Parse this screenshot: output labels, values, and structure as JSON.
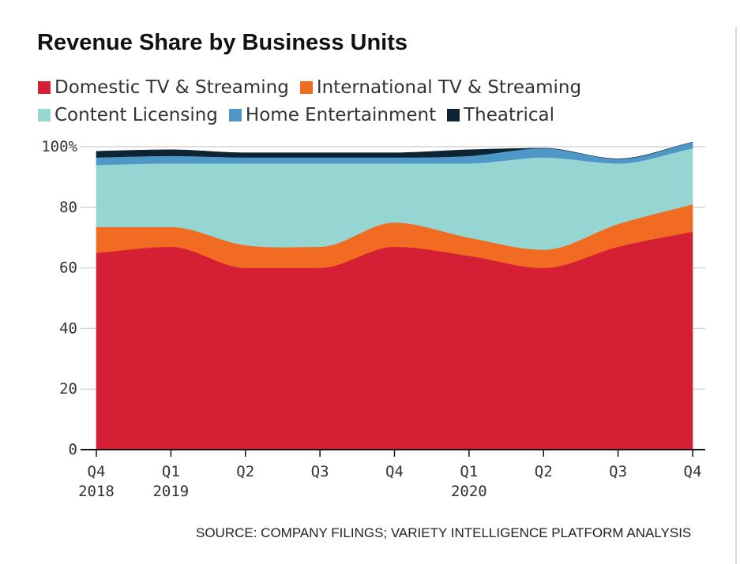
{
  "chart_data": {
    "type": "area",
    "stacked": true,
    "title": "Revenue Share by Business Units",
    "source": "SOURCE: COMPANY FILINGS; VARIETY INTELLIGENCE PLATFORM ANALYSIS",
    "categories": [
      {
        "label": "Q4",
        "year": "2018"
      },
      {
        "label": "Q1",
        "year": "2019"
      },
      {
        "label": "Q2",
        "year": ""
      },
      {
        "label": "Q3",
        "year": ""
      },
      {
        "label": "Q4",
        "year": ""
      },
      {
        "label": "Q1",
        "year": "2020"
      },
      {
        "label": "Q2",
        "year": ""
      },
      {
        "label": "Q3",
        "year": ""
      },
      {
        "label": "Q4",
        "year": ""
      }
    ],
    "series": [
      {
        "name": "Domestic TV & Streaming",
        "color": "#d41f35",
        "values": [
          65,
          67,
          60,
          60,
          67,
          64,
          60,
          67,
          72
        ]
      },
      {
        "name": "International TV & Streaming",
        "color": "#f26b22",
        "values": [
          8.5,
          6.5,
          7.5,
          7,
          8,
          6,
          6,
          7.5,
          9
        ]
      },
      {
        "name": "Content Licensing",
        "color": "#95d5d2",
        "values": [
          20.5,
          21,
          27,
          27.5,
          19.5,
          24.5,
          30.5,
          20,
          18.5
        ]
      },
      {
        "name": "Home Entertainment",
        "color": "#4f97c7",
        "values": [
          2.5,
          2.5,
          2,
          2,
          2,
          2.5,
          3,
          1.5,
          2
        ]
      },
      {
        "name": "Theatrical",
        "color": "#0c2434",
        "values": [
          2,
          2,
          1.5,
          1.5,
          1.5,
          2,
          0,
          0,
          0
        ]
      }
    ],
    "yticks": [
      {
        "value": 0,
        "label": "0"
      },
      {
        "value": 20,
        "label": "20"
      },
      {
        "value": 40,
        "label": "40"
      },
      {
        "value": 60,
        "label": "60"
      },
      {
        "value": 80,
        "label": "80"
      },
      {
        "value": 100,
        "label": "100%"
      }
    ],
    "ylim": [
      0,
      100
    ],
    "grid": true,
    "legend_position": "top"
  }
}
